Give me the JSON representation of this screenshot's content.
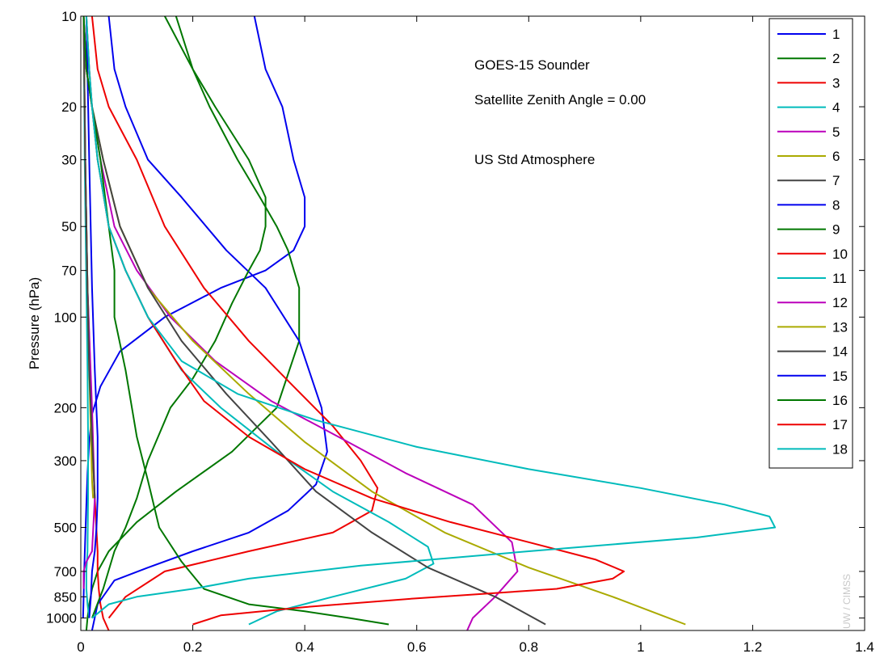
{
  "chart_data": {
    "type": "line",
    "title": "",
    "xlabel": "",
    "ylabel": "Pressure (hPa)",
    "xlim": [
      0,
      1.4
    ],
    "ylim": [
      1100,
      10
    ],
    "yscale": "log",
    "yreversed": true,
    "grid": false,
    "legend_position": "top-right",
    "x_ticks": [
      "0",
      "0.2",
      "0.4",
      "0.6",
      "0.8",
      "1",
      "1.2",
      "1.4"
    ],
    "x_tick_values": [
      0,
      0.2,
      0.4,
      0.6,
      0.8,
      1.0,
      1.2,
      1.4
    ],
    "y_ticks": [
      "10",
      "20",
      "30",
      "50",
      "70",
      "100",
      "200",
      "300",
      "500",
      "700",
      "850",
      "1000"
    ],
    "y_tick_values": [
      10,
      20,
      30,
      50,
      70,
      100,
      200,
      300,
      500,
      700,
      850,
      1000
    ],
    "annotations": [
      "GOES-15 Sounder",
      "Satellite Zenith Angle = 0.00",
      "US Std Atmosphere"
    ],
    "watermark": "UW / CIMSS",
    "series": [
      {
        "name": "1",
        "color": "#0000ee",
        "x": [
          0.31,
          0.33,
          0.36,
          0.38,
          0.4,
          0.4,
          0.38,
          0.33,
          0.25,
          0.15,
          0.07,
          0.035,
          0.02,
          0.015,
          0.012,
          0.01,
          0.008,
          0.006,
          0.005,
          0.004
        ],
        "y": [
          10,
          15,
          20,
          30,
          40,
          50,
          60,
          70,
          80,
          100,
          130,
          170,
          210,
          260,
          330,
          420,
          540,
          700,
          850,
          1000
        ]
      },
      {
        "name": "2",
        "color": "#007700",
        "x": [
          0.15,
          0.2,
          0.23,
          0.28,
          0.32,
          0.35,
          0.37,
          0.39,
          0.39,
          0.35,
          0.27,
          0.17,
          0.1,
          0.05,
          0.03,
          0.02,
          0.015,
          0.012,
          0.01
        ],
        "y": [
          10,
          15,
          20,
          30,
          40,
          50,
          60,
          80,
          120,
          200,
          280,
          380,
          480,
          600,
          700,
          800,
          900,
          1000,
          1100
        ]
      },
      {
        "name": "3",
        "color": "#ee0000",
        "x": [
          0.005,
          0.008,
          0.012,
          0.017,
          0.02,
          0.025,
          0.03,
          0.03,
          0.032,
          0.035,
          0.04,
          0.05
        ],
        "y": [
          10,
          30,
          80,
          150,
          250,
          400,
          600,
          700,
          800,
          900,
          1000,
          1100
        ]
      },
      {
        "name": "4",
        "color": "#00bbbb",
        "x": [
          0.005,
          0.007,
          0.01,
          0.012,
          0.013,
          0.013,
          0.012,
          0.01,
          0.01,
          0.012,
          0.015
        ],
        "y": [
          10,
          30,
          80,
          150,
          250,
          400,
          600,
          700,
          800,
          900,
          1000
        ]
      },
      {
        "name": "5",
        "color": "#bb00bb",
        "x": [
          0.005,
          0.008,
          0.012,
          0.02,
          0.025,
          0.02,
          0.01,
          0.005,
          0.005
        ],
        "y": [
          10,
          30,
          80,
          200,
          400,
          600,
          650,
          700,
          800
        ]
      },
      {
        "name": "6",
        "color": "#aaaa00",
        "x": [
          0.005,
          0.008,
          0.012,
          0.015,
          0.018,
          0.02,
          0.022
        ],
        "y": [
          10,
          30,
          80,
          150,
          250,
          350,
          400
        ]
      },
      {
        "name": "7",
        "color": "#444444",
        "x": [
          0.005,
          0.008,
          0.012,
          0.015,
          0.02,
          0.025
        ],
        "y": [
          10,
          30,
          80,
          150,
          250,
          400
        ]
      },
      {
        "name": "8",
        "color": "#0000ee",
        "x": [
          0.05,
          0.06,
          0.08,
          0.12,
          0.18,
          0.26,
          0.33,
          0.39,
          0.43,
          0.44,
          0.42,
          0.37,
          0.3,
          0.2,
          0.12,
          0.06,
          0.03,
          0.02
        ],
        "y": [
          10,
          15,
          20,
          30,
          40,
          60,
          80,
          120,
          200,
          280,
          360,
          440,
          520,
          600,
          680,
          750,
          900,
          1100
        ]
      },
      {
        "name": "9",
        "color": "#007700",
        "x": [
          0.17,
          0.2,
          0.24,
          0.3,
          0.33,
          0.33,
          0.32,
          0.3,
          0.27,
          0.24,
          0.2,
          0.16,
          0.12,
          0.1,
          0.08,
          0.06,
          0.04,
          0.02
        ],
        "y": [
          10,
          15,
          20,
          30,
          40,
          50,
          60,
          70,
          90,
          120,
          160,
          200,
          300,
          400,
          500,
          600,
          800,
          1000
        ]
      },
      {
        "name": "10",
        "color": "#ee0000",
        "x": [
          0.02,
          0.03,
          0.05,
          0.1,
          0.15,
          0.22,
          0.3,
          0.38,
          0.45,
          0.5,
          0.53,
          0.52,
          0.45,
          0.3,
          0.15,
          0.08,
          0.05
        ],
        "y": [
          10,
          15,
          20,
          30,
          50,
          80,
          120,
          170,
          230,
          300,
          370,
          440,
          520,
          600,
          700,
          850,
          1000
        ]
      },
      {
        "name": "11",
        "color": "#00bbbb",
        "x": [
          0.01,
          0.015,
          0.02,
          0.03,
          0.05,
          0.08,
          0.12,
          0.18,
          0.25,
          0.35,
          0.45,
          0.55,
          0.62,
          0.63,
          0.58,
          0.45,
          0.35,
          0.3
        ],
        "y": [
          10,
          15,
          20,
          30,
          50,
          70,
          100,
          150,
          200,
          280,
          380,
          480,
          580,
          660,
          740,
          850,
          950,
          1050
        ]
      },
      {
        "name": "12",
        "color": "#bb00bb",
        "x": [
          0.005,
          0.01,
          0.02,
          0.035,
          0.06,
          0.1,
          0.16,
          0.24,
          0.34,
          0.46,
          0.58,
          0.7,
          0.77,
          0.78,
          0.74,
          0.7,
          0.69
        ],
        "y": [
          10,
          15,
          20,
          30,
          50,
          70,
          100,
          140,
          190,
          250,
          330,
          420,
          560,
          700,
          850,
          1000,
          1100
        ]
      },
      {
        "name": "13",
        "color": "#aaaa00",
        "x": [
          0.005,
          0.01,
          0.02,
          0.04,
          0.07,
          0.12,
          0.2,
          0.3,
          0.4,
          0.52,
          0.65,
          0.8,
          0.95,
          1.08
        ],
        "y": [
          10,
          15,
          20,
          30,
          50,
          80,
          120,
          180,
          260,
          380,
          520,
          680,
          850,
          1050
        ]
      },
      {
        "name": "14",
        "color": "#444444",
        "x": [
          0.005,
          0.01,
          0.02,
          0.04,
          0.07,
          0.12,
          0.18,
          0.26,
          0.34,
          0.42,
          0.52,
          0.62,
          0.74,
          0.83
        ],
        "y": [
          10,
          15,
          20,
          30,
          50,
          80,
          120,
          180,
          260,
          380,
          520,
          680,
          850,
          1050
        ]
      },
      {
        "name": "15",
        "color": "#0000ee",
        "x": [
          0.01,
          0.015,
          0.02,
          0.025,
          0.03,
          0.03,
          0.028,
          0.025,
          0.02,
          0.018,
          0.015
        ],
        "y": [
          10,
          30,
          80,
          150,
          250,
          400,
          500,
          600,
          700,
          850,
          1000
        ]
      },
      {
        "name": "16",
        "color": "#007700",
        "x": [
          0.005,
          0.01,
          0.02,
          0.035,
          0.05,
          0.06,
          0.06,
          0.08,
          0.1,
          0.12,
          0.14,
          0.18,
          0.22,
          0.3,
          0.4,
          0.48,
          0.55
        ],
        "y": [
          10,
          15,
          20,
          30,
          50,
          70,
          100,
          150,
          250,
          350,
          500,
          650,
          800,
          900,
          950,
          1000,
          1050
        ]
      },
      {
        "name": "17",
        "color": "#ee0000",
        "x": [
          0.01,
          0.015,
          0.02,
          0.03,
          0.05,
          0.08,
          0.12,
          0.17,
          0.22,
          0.3,
          0.4,
          0.52,
          0.66,
          0.8,
          0.92,
          0.97,
          0.95,
          0.85,
          0.6,
          0.4,
          0.25,
          0.2
        ],
        "y": [
          10,
          15,
          20,
          30,
          50,
          70,
          100,
          140,
          190,
          250,
          320,
          400,
          480,
          560,
          640,
          700,
          740,
          800,
          860,
          920,
          980,
          1050
        ]
      },
      {
        "name": "18",
        "color": "#00bbbb",
        "x": [
          0.01,
          0.015,
          0.02,
          0.03,
          0.05,
          0.08,
          0.12,
          0.18,
          0.28,
          0.42,
          0.6,
          0.8,
          1.0,
          1.15,
          1.23,
          1.24,
          1.1,
          0.8,
          0.5,
          0.3,
          0.2,
          0.1,
          0.05,
          0.02
        ],
        "y": [
          10,
          15,
          20,
          30,
          50,
          70,
          100,
          140,
          180,
          220,
          270,
          320,
          370,
          420,
          460,
          500,
          540,
          600,
          670,
          740,
          800,
          850,
          900,
          1000
        ]
      }
    ]
  }
}
